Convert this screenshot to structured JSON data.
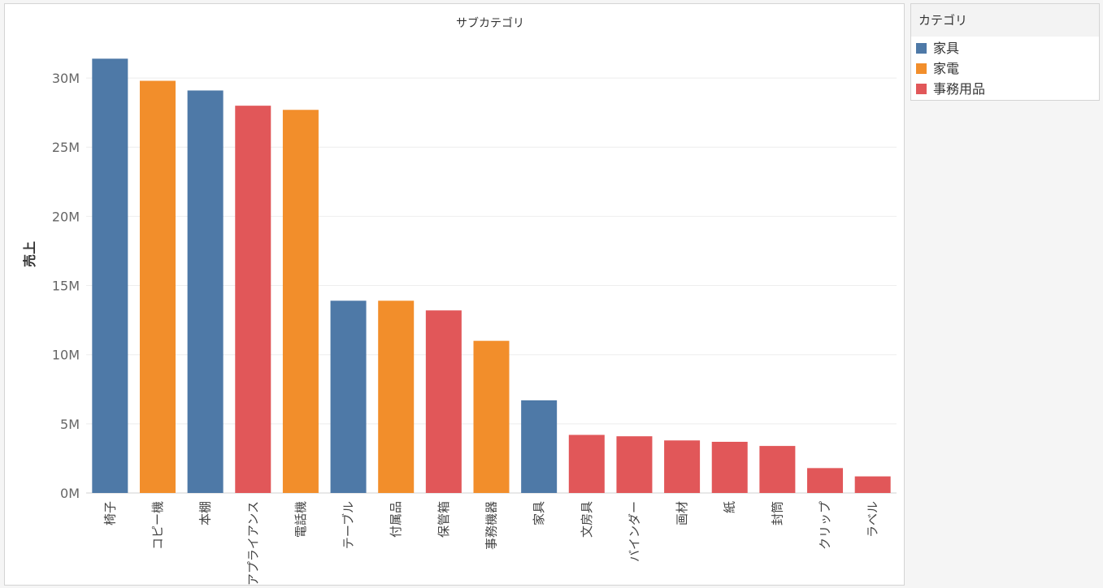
{
  "chart_data": {
    "type": "bar",
    "title": "サブカテゴリ",
    "xlabel": "",
    "ylabel": "売上",
    "ylim": [
      0,
      33
    ],
    "yticks": [
      0,
      5,
      10,
      15,
      20,
      25,
      30
    ],
    "ytick_suffix": "M",
    "grid": true,
    "legend_position": "right",
    "categories": [
      "椅子",
      "コピー機",
      "本棚",
      "アプライアンス",
      "電話機",
      "テーブル",
      "付属品",
      "保管箱",
      "事務機器",
      "家具",
      "文房具",
      "バインダー",
      "画材",
      "紙",
      "封筒",
      "クリップ",
      "ラベル"
    ],
    "values": [
      31.4,
      29.8,
      29.1,
      28.0,
      27.7,
      13.9,
      13.9,
      13.2,
      11.0,
      6.7,
      4.2,
      4.1,
      3.8,
      3.7,
      3.4,
      1.8,
      1.2
    ],
    "category_group": [
      "家具",
      "家電",
      "家具",
      "事務用品",
      "家電",
      "家具",
      "家電",
      "事務用品",
      "家電",
      "家具",
      "事務用品",
      "事務用品",
      "事務用品",
      "事務用品",
      "事務用品",
      "事務用品",
      "事務用品"
    ],
    "legend": {
      "title": "カテゴリ",
      "entries": [
        {
          "name": "家具",
          "color": "#4e79a7"
        },
        {
          "name": "家電",
          "color": "#f28e2b"
        },
        {
          "name": "事務用品",
          "color": "#e15759"
        }
      ]
    }
  }
}
